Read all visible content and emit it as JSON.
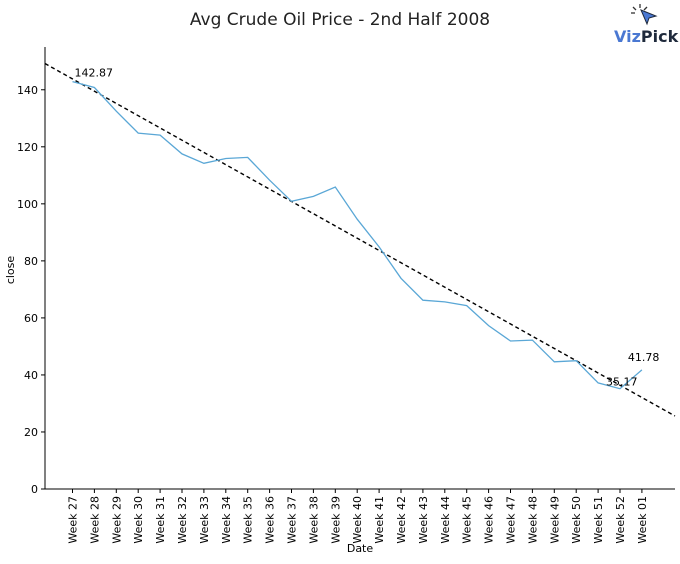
{
  "chart_data": {
    "type": "line",
    "title": "Avg Crude Oil Price - 2nd Half 2008",
    "xlabel": "Date",
    "ylabel": "close",
    "ylim": [
      0,
      155
    ],
    "yticks": [
      0,
      20,
      40,
      60,
      80,
      100,
      120,
      140
    ],
    "grid": false,
    "categories": [
      "Week 27",
      "Week 28",
      "Week 29",
      "Week 30",
      "Week 31",
      "Week 32",
      "Week 33",
      "Week 34",
      "Week 35",
      "Week 36",
      "Week 37",
      "Week 38",
      "Week 39",
      "Week 40",
      "Week 41",
      "Week 42",
      "Week 43",
      "Week 44",
      "Week 45",
      "Week 46",
      "Week 47",
      "Week 48",
      "Week 49",
      "Week 50",
      "Week 51",
      "Week 52",
      "Week 01"
    ],
    "series": [
      {
        "values": [
          142.87,
          140.8,
          132.5,
          124.8,
          124.1,
          117.5,
          114.2,
          115.9,
          116.3,
          108.3,
          100.9,
          102.6,
          105.9,
          94.6,
          84.9,
          73.9,
          66.2,
          65.6,
          64.3,
          57.3,
          51.9,
          52.2,
          44.6,
          45.0,
          37.2,
          35.17,
          41.78
        ],
        "color": "#5aa7d6"
      }
    ],
    "trendline": {
      "style": "dashed",
      "color": "#000000",
      "start": 149.2,
      "end": 25.6
    },
    "annotations": [
      {
        "category": "Week 27",
        "value": 142.87,
        "text": "142.87"
      },
      {
        "category": "Week 52",
        "value": 35.17,
        "text": "35.17"
      },
      {
        "category": "Week 01",
        "value": 41.78,
        "text": "41.78"
      }
    ]
  },
  "brand": {
    "logo_text_a": "Viz",
    "logo_text_b": "Pick",
    "color_a": "#4a78d2",
    "color_b": "#1f2a3c"
  }
}
